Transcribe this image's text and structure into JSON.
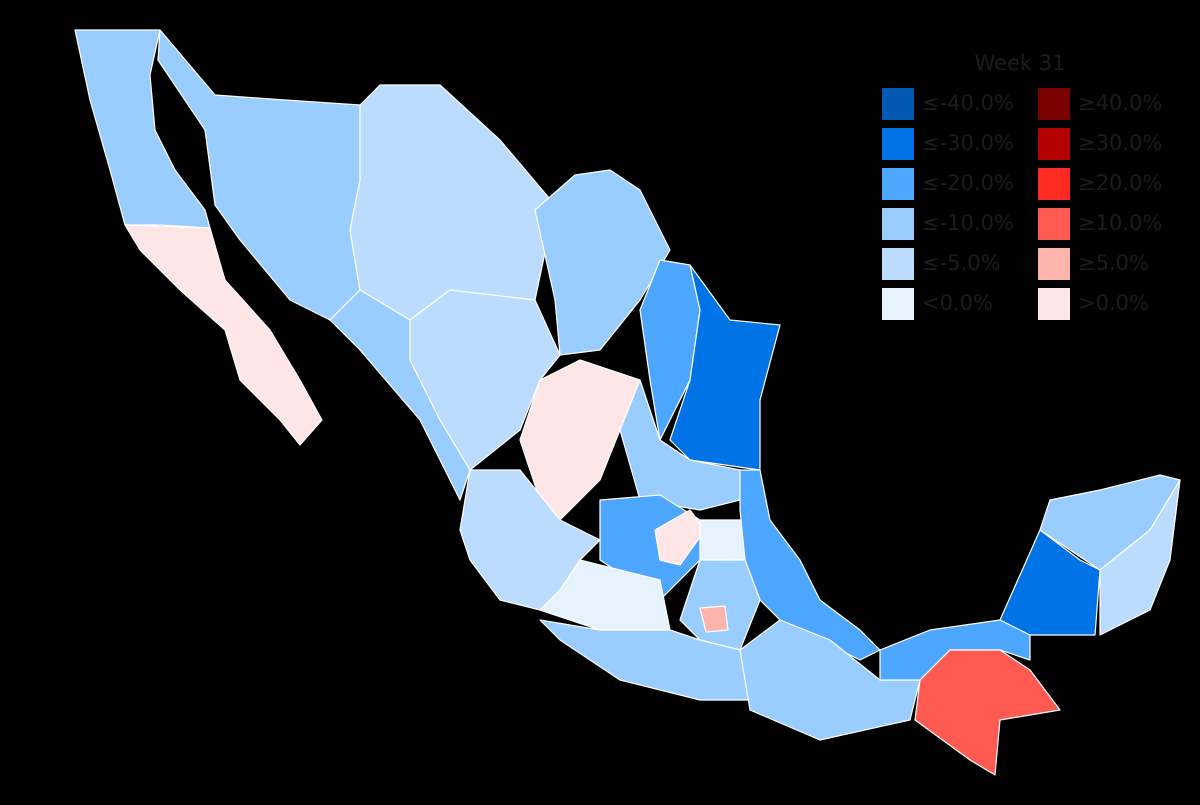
{
  "legend": {
    "title": "Week 31",
    "left": [
      {
        "label": "≤-40.0%",
        "color": "#0058b2"
      },
      {
        "label": "≤-30.0%",
        "color": "#0073e6"
      },
      {
        "label": "≤-20.0%",
        "color": "#4da6ff"
      },
      {
        "label": "≤-10.0%",
        "color": "#99ccff"
      },
      {
        "label": "≤-5.0%",
        "color": "#bbdcff"
      },
      {
        "label": "<0.0%",
        "color": "#e6f3ff"
      }
    ],
    "right": [
      {
        "label": "≥40.0%",
        "color": "#7a0000"
      },
      {
        "label": "≥30.0%",
        "color": "#b30000"
      },
      {
        "label": "≥20.0%",
        "color": "#ff2a20"
      },
      {
        "label": "≥10.0%",
        "color": "#ff5a52"
      },
      {
        "label": "≥5.0%",
        "color": "#ffb3ad"
      },
      {
        "label": ">0.0%",
        "color": "#ffe6e6"
      }
    ]
  }
}
